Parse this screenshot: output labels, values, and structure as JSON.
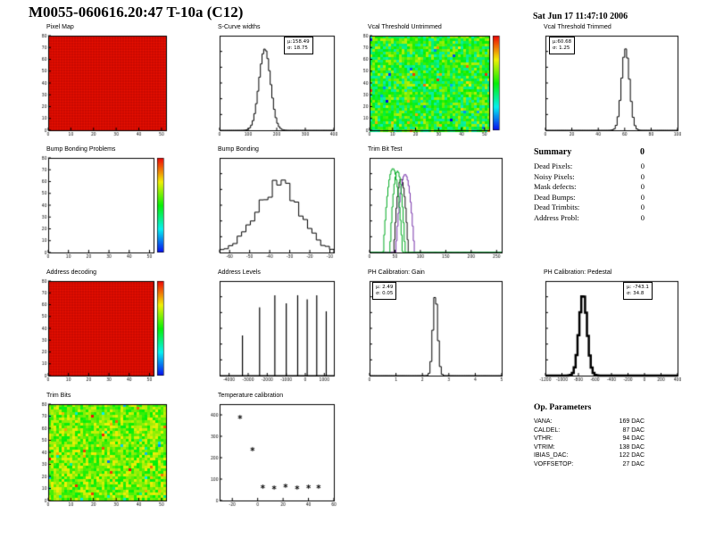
{
  "header": {
    "title": "M0055-060616.20:47 T-10a (C12)",
    "date": "Sat Jun 17 11:47:10 2006"
  },
  "summary": {
    "heading": "Summary",
    "total": "0",
    "rows": [
      {
        "label": "Dead Pixels:",
        "value": "0"
      },
      {
        "label": "Noisy Pixels:",
        "value": "0"
      },
      {
        "label": "Mask defects:",
        "value": "0"
      },
      {
        "label": "Dead Bumps:",
        "value": "0"
      },
      {
        "label": "Dead Trimbits:",
        "value": "0"
      },
      {
        "label": "Address Probl:",
        "value": "0"
      }
    ]
  },
  "op_parameters": {
    "heading": "Op. Parameters",
    "rows": [
      {
        "label": "VANA:",
        "value": "169 DAC"
      },
      {
        "label": "CALDEL:",
        "value": "87 DAC"
      },
      {
        "label": "VTHR:",
        "value": "94 DAC"
      },
      {
        "label": "VTRIM:",
        "value": "138 DAC"
      },
      {
        "label": "IBIAS_DAC:",
        "value": "122 DAC"
      },
      {
        "label": "VOFFSETOP:",
        "value": "27 DAC"
      }
    ]
  },
  "chart_data": [
    {
      "id": "cv-pixel-map",
      "title": "Pixel Map",
      "type": "heatmap",
      "style": "solid",
      "fill": "#ed0f00",
      "x_range": [
        0,
        52
      ],
      "y_range": [
        0,
        80
      ],
      "x_ticks": [
        0,
        10,
        20,
        30,
        40,
        50
      ],
      "y_ticks": [
        0,
        10,
        20,
        30,
        40,
        50,
        60,
        70,
        80
      ]
    },
    {
      "id": "cv-scurve",
      "title": "S-Curve widths",
      "type": "gauss_hist",
      "mean": 158.49,
      "sigma": 18.75,
      "draw_sigma": 20,
      "x_range": [
        0,
        400
      ],
      "x_ticks": [
        0,
        100,
        200,
        300,
        400
      ],
      "stats": {
        "mu": "μ:158.49",
        "sigma": "σ: 18.75"
      }
    },
    {
      "id": "cv-vcal-untrimmed",
      "title": "Vcal Threshold Untrimmed",
      "type": "heatmap",
      "style": "noise",
      "seed": 7,
      "base": 0.5,
      "spread": 0.38,
      "colorbar": true,
      "x_range": [
        0,
        52
      ],
      "y_range": [
        0,
        80
      ],
      "x_ticks": [
        0,
        10,
        20,
        30,
        40,
        50
      ],
      "y_ticks": [
        0,
        10,
        20,
        30,
        40,
        50,
        60,
        70,
        80
      ]
    },
    {
      "id": "cv-vcal-trimmed",
      "title": "Vcal Threshold Trimmed",
      "type": "gauss_hist",
      "mean": 60.68,
      "sigma": 1.25,
      "draw_sigma": 3,
      "x_range": [
        0,
        100
      ],
      "x_ticks": [
        0,
        20,
        40,
        60,
        80,
        100
      ],
      "stats": {
        "mu": "μ:60.68",
        "sigma": "σ: 1.25"
      }
    },
    {
      "id": "cv-bump-problems",
      "title": "Bump Bonding Problems",
      "type": "heatmap",
      "style": "empty",
      "colorbar": true,
      "x_range": [
        0,
        52
      ],
      "y_range": [
        0,
        80
      ],
      "x_ticks": [
        0,
        10,
        20,
        30,
        40,
        50
      ],
      "y_ticks": [
        0,
        10,
        20,
        30,
        40,
        50,
        60,
        70,
        80
      ]
    },
    {
      "id": "cv-bump-bonding",
      "title": "Bump Bonding",
      "type": "dome_hist",
      "mean": -36,
      "sigma": 11,
      "seed": 3,
      "x_range": [
        -65,
        -8
      ],
      "x_ticks": [
        -60,
        -50,
        -40,
        -30,
        -20,
        -10
      ]
    },
    {
      "id": "cv-trimbit",
      "title": "Trim Bit Test",
      "type": "log_spikes",
      "x_range": [
        0,
        260
      ],
      "x_ticks": [
        0,
        50,
        100,
        150,
        200,
        250
      ],
      "series": [
        {
          "color": "#111111",
          "center": 62,
          "sigma": 4,
          "peak": 600
        },
        {
          "color": "#7733aa",
          "center": 70,
          "sigma": 5,
          "peak": 900
        },
        {
          "color": "#00aa22",
          "center": 46,
          "sigma": 5,
          "peak": 1500
        },
        {
          "color": "#00aa22",
          "center": 55,
          "sigma": 4,
          "peak": 1200
        }
      ]
    },
    {
      "id": "cv-address-decoding",
      "title": "Address decoding",
      "type": "heatmap",
      "style": "solid",
      "fill": "#ed0f00",
      "colorbar": true,
      "x_range": [
        0,
        52
      ],
      "y_range": [
        0,
        80
      ],
      "x_ticks": [
        0,
        10,
        20,
        30,
        40,
        50
      ],
      "y_ticks": [
        0,
        10,
        20,
        30,
        40,
        50,
        60,
        70,
        80
      ]
    },
    {
      "id": "cv-address-levels",
      "title": "Address Levels",
      "type": "spikes",
      "x_range": [
        -4500,
        1500
      ],
      "x_ticks": [
        -4000,
        -3000,
        -2000,
        -1000,
        0,
        1000
      ],
      "spikes": [
        {
          "x": -3300,
          "h": 0.5
        },
        {
          "x": -2400,
          "h": 0.85
        },
        {
          "x": -1600,
          "h": 1
        },
        {
          "x": -1000,
          "h": 0.9
        },
        {
          "x": -400,
          "h": 1
        },
        {
          "x": 100,
          "h": 0.95
        },
        {
          "x": 600,
          "h": 1
        },
        {
          "x": 1100,
          "h": 0.8
        }
      ]
    },
    {
      "id": "cv-ph-gain",
      "title": "PH Calibration: Gain",
      "type": "gauss_hist",
      "mean": 2.49,
      "sigma": 0.05,
      "draw_sigma": 0.09,
      "x_range": [
        0,
        5
      ],
      "x_ticks": [
        0,
        1,
        2,
        3,
        4,
        5
      ],
      "stats": {
        "mu": "μ: 2.49",
        "sigma": "σ: 0.05"
      }
    },
    {
      "id": "cv-ph-pedestal",
      "title": "PH Calibration: Pedestal",
      "type": "gauss_hist",
      "mean": -743.1,
      "sigma": 34.8,
      "draw_sigma": 48,
      "thick": 2.5,
      "x_range": [
        -1200,
        400
      ],
      "x_ticks": [
        -1200,
        -1000,
        -800,
        -600,
        -400,
        -200,
        0,
        200,
        400
      ],
      "stats": {
        "mu": "μ: -743.1",
        "sigma": "σ: 34.8"
      }
    },
    {
      "id": "cv-trim-bits",
      "title": "Trim Bits",
      "type": "heatmap",
      "style": "noise",
      "seed": 21,
      "base": 0.62,
      "spread": 0.28,
      "x_range": [
        0,
        52
      ],
      "y_range": [
        0,
        80
      ],
      "x_ticks": [
        0,
        10,
        20,
        30,
        40,
        50
      ],
      "y_ticks": [
        0,
        10,
        20,
        30,
        40,
        50,
        60,
        70,
        80
      ]
    },
    {
      "id": "cv-temperature",
      "title": "Temperature calibration",
      "type": "scatter",
      "x_range": [
        -30,
        60
      ],
      "y_range": [
        0,
        450
      ],
      "x_ticks": [
        -20,
        0,
        20,
        40,
        60
      ],
      "y_ticks": [
        0,
        100,
        200,
        300,
        400
      ],
      "points": [
        {
          "x": -14,
          "y": 385
        },
        {
          "x": -4,
          "y": 235
        },
        {
          "x": 4,
          "y": 60
        },
        {
          "x": 13,
          "y": 55
        },
        {
          "x": 22,
          "y": 62
        },
        {
          "x": 31,
          "y": 55
        },
        {
          "x": 40,
          "y": 60
        },
        {
          "x": 48,
          "y": 57
        }
      ]
    }
  ]
}
